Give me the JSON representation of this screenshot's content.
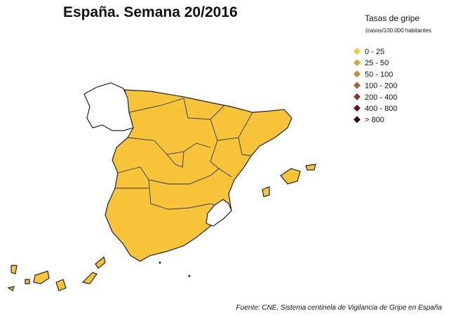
{
  "title": "España. Semana 20/2016",
  "legend": {
    "title": "Tasas de gripe",
    "subtitle": "(casos/100.000 habitantes",
    "items": [
      {
        "label": "0 - 25",
        "color": "#f5c842"
      },
      {
        "label": "25 - 50",
        "color": "#dca63c"
      },
      {
        "label": "50 - 100",
        "color": "#c68936"
      },
      {
        "label": "100 - 200",
        "color": "#a5642f"
      },
      {
        "label": "200 - 400",
        "color": "#8a3a2a"
      },
      {
        "label": "400 - 800",
        "color": "#6a1020"
      },
      {
        "label": "> 800",
        "color": "#3a0a0a"
      }
    ]
  },
  "source": "Fuente: CNE. Sistema centinela de Vigilancia de Gripe en España"
}
